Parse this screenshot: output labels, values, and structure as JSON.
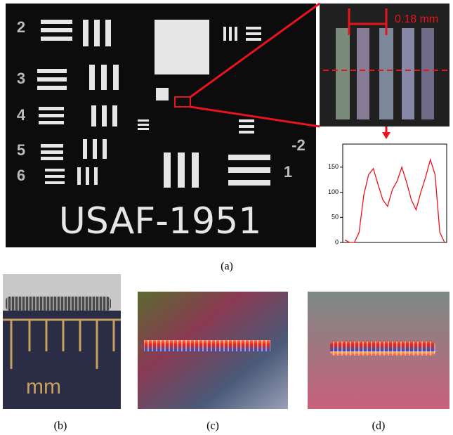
{
  "figure": {
    "panel_labels": [
      "(a)",
      "(b)",
      "(c)",
      "(d)"
    ],
    "target_text": "USAF-1951",
    "target_numbers_left": [
      "2",
      "3",
      "4",
      "5",
      "6"
    ],
    "target_numbers_right": [
      "-2",
      "1"
    ],
    "scale_annotation": "0.18 mm",
    "ruler_unit": "mm"
  },
  "chart_data": {
    "type": "line",
    "series": [
      {
        "color": "#e8141c",
        "values": [
          5,
          0,
          0,
          20,
          95,
          135,
          147,
          115,
          85,
          72,
          105,
          122,
          150,
          120,
          85,
          65,
          100,
          130,
          165,
          135,
          20,
          0
        ]
      }
    ],
    "ylim": [
      0,
      196
    ],
    "yticks": [
      0,
      50,
      100,
      150
    ]
  }
}
